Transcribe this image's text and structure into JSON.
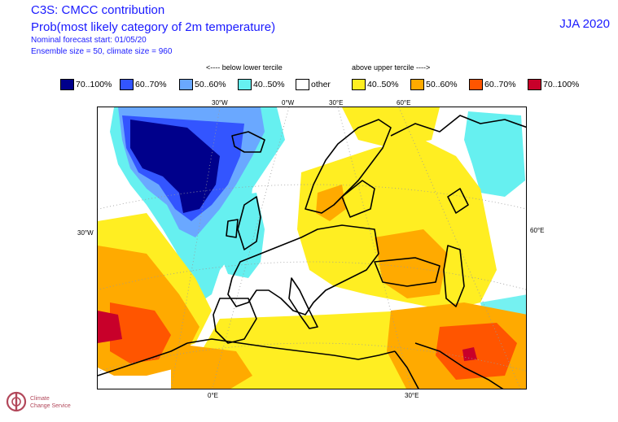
{
  "header": {
    "title1": "C3S: CMCC contribution",
    "title2": "Prob(most likely category of 2m temperature)",
    "meta1": "Nominal forecast start: 01/05/20",
    "meta2": "Ensemble size = 50, climate size = 960",
    "season": "JJA 2020"
  },
  "legend": {
    "below_caption": "<---- below lower tercile",
    "above_caption": "above upper tercile ---->",
    "items": [
      {
        "label": "70..100%",
        "color": "#00008b"
      },
      {
        "label": "60..70%",
        "color": "#3355ff"
      },
      {
        "label": "50..60%",
        "color": "#6aa8ff"
      },
      {
        "label": "40..50%",
        "color": "#66f0f0"
      },
      {
        "label": "other",
        "color": "#ffffff"
      },
      {
        "label": "40..50%",
        "color": "#ffee22"
      },
      {
        "label": "50..60%",
        "color": "#ffaa00"
      },
      {
        "label": "60..70%",
        "color": "#ff5500"
      },
      {
        "label": "70..100%",
        "color": "#c8002a"
      }
    ]
  },
  "map": {
    "top_ticks": [
      "30°W",
      "0°W",
      "30°E",
      "60°E"
    ],
    "left_tick": "30°W",
    "right_tick": "60°E",
    "bottom_ticks": [
      "0°E",
      "30°E"
    ]
  },
  "logo": {
    "text": "Climate Change Service"
  }
}
